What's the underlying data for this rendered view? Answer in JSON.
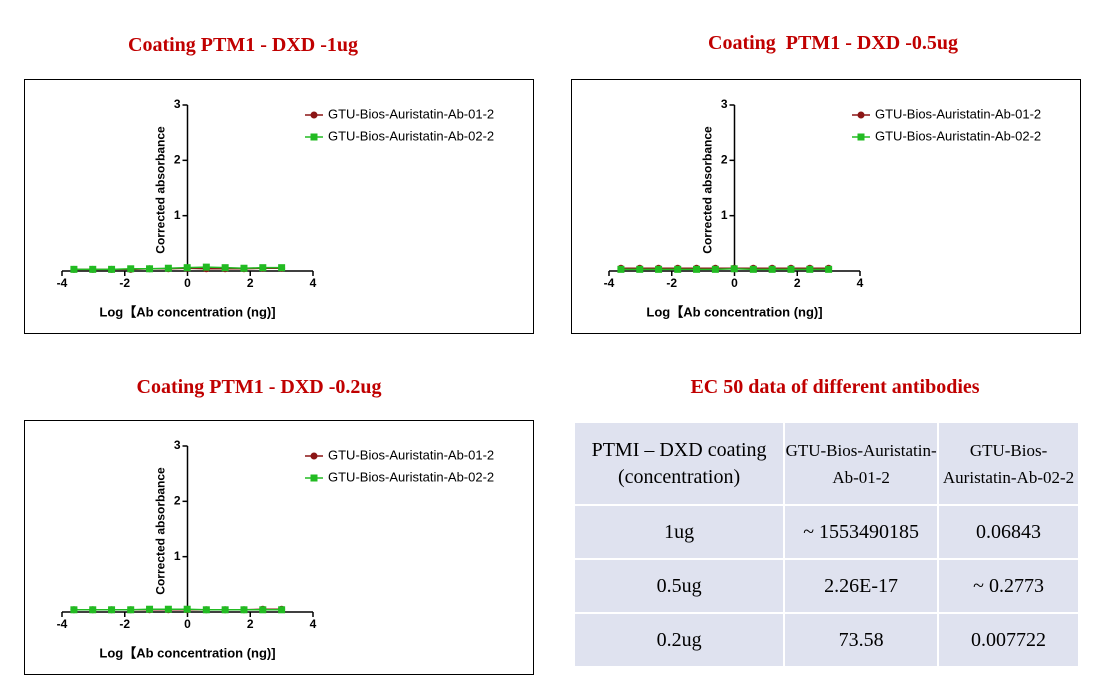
{
  "chart_data": [
    {
      "type": "line",
      "title": "Coating PTM1 - DXD -1ug",
      "xlabel": "Log【Ab concentration (ng)]",
      "ylabel": "Corrected absorbance",
      "x": [
        -3.62,
        -3.02,
        -2.42,
        -1.81,
        -1.21,
        -0.61,
        -0.01,
        0.6,
        1.2,
        1.8,
        2.4,
        3.0
      ],
      "series": [
        {
          "name": "GTU-Bios-Auristatin-Ab-01-2",
          "color": "#8b1515",
          "values": [
            0.03,
            0.03,
            0.03,
            0.03,
            0.04,
            0.04,
            0.05,
            0.04,
            0.04,
            0.04,
            0.05,
            0.05
          ]
        },
        {
          "name": "GTU-Bios-Auristatin-Ab-02-2",
          "color": "#22bb22",
          "values": [
            0.03,
            0.03,
            0.03,
            0.04,
            0.04,
            0.05,
            0.06,
            0.07,
            0.06,
            0.05,
            0.06,
            0.06
          ]
        }
      ],
      "xlim": [
        -4,
        4
      ],
      "ylim": [
        0,
        3
      ],
      "xticks": [
        -4,
        -2,
        0,
        2,
        4
      ],
      "yticks": [
        1,
        2,
        3
      ],
      "legend": "upper right"
    },
    {
      "type": "line",
      "title": "Coating  PTM1 - DXD -0.5ug",
      "xlabel": "Log【Ab concentration (ng)]",
      "ylabel": "Corrected absorbance",
      "x": [
        -3.62,
        -3.02,
        -2.42,
        -1.81,
        -1.21,
        -0.61,
        -0.01,
        0.6,
        1.2,
        1.8,
        2.4,
        3.0
      ],
      "series": [
        {
          "name": "GTU-Bios-Auristatin-Ab-01-2",
          "color": "#8b1515",
          "values": [
            0.05,
            0.05,
            0.05,
            0.05,
            0.05,
            0.05,
            0.05,
            0.05,
            0.05,
            0.05,
            0.05,
            0.05
          ]
        },
        {
          "name": "GTU-Bios-Auristatin-Ab-02-2",
          "color": "#22bb22",
          "values": [
            0.03,
            0.03,
            0.03,
            0.03,
            0.03,
            0.03,
            0.04,
            0.03,
            0.03,
            0.03,
            0.03,
            0.03
          ]
        }
      ],
      "xlim": [
        -4,
        4
      ],
      "ylim": [
        0,
        3
      ],
      "xticks": [
        -4,
        -2,
        0,
        2,
        4
      ],
      "yticks": [
        1,
        2,
        3
      ],
      "legend": "upper right"
    },
    {
      "type": "line",
      "title": "Coating PTM1 - DXD -0.2ug",
      "xlabel": "Log【Ab concentration (ng)]",
      "ylabel": "Corrected absorbance",
      "x": [
        -3.62,
        -3.02,
        -2.42,
        -1.81,
        -1.21,
        -0.61,
        -0.01,
        0.6,
        1.2,
        1.8,
        2.4,
        3.0
      ],
      "series": [
        {
          "name": "GTU-Bios-Auristatin-Ab-01-2",
          "color": "#8b1515",
          "values": [
            0.04,
            0.04,
            0.04,
            0.04,
            0.04,
            0.04,
            0.04,
            0.04,
            0.04,
            0.04,
            0.05,
            0.05
          ]
        },
        {
          "name": "GTU-Bios-Auristatin-Ab-02-2",
          "color": "#22bb22",
          "values": [
            0.04,
            0.04,
            0.04,
            0.04,
            0.05,
            0.05,
            0.05,
            0.04,
            0.04,
            0.04,
            0.04,
            0.04
          ]
        }
      ],
      "xlim": [
        -4,
        4
      ],
      "ylim": [
        0,
        3
      ],
      "xticks": [
        -4,
        -2,
        0,
        2,
        4
      ],
      "yticks": [
        1,
        2,
        3
      ],
      "legend": "upper right"
    }
  ],
  "table": {
    "title": "EC 50 data of different antibodies",
    "header": [
      "PTMI – DXD coating (concentration)",
      "GTU-Bios-Auristatin-Ab-01-2",
      "GTU-Bios-Auristatin-Ab-02-2"
    ],
    "rows": [
      [
        "1ug",
        "~ 1553490185",
        "0.06843"
      ],
      [
        "0.5ug",
        "2.26E-17",
        "~ 0.2773"
      ],
      [
        "0.2ug",
        "73.58",
        "0.007722"
      ]
    ]
  }
}
